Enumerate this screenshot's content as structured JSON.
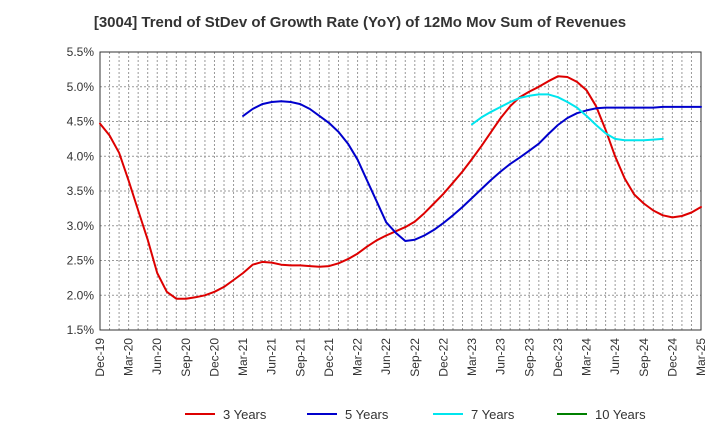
{
  "chart_data": {
    "type": "line",
    "title": "[3004]  Trend of StDev of Growth Rate (YoY) of 12Mo Mov Sum of Revenues",
    "xlabel": "",
    "ylabel": "",
    "ylim": [
      1.5,
      5.5
    ],
    "yticks": [
      "1.5%",
      "2.0%",
      "2.5%",
      "3.0%",
      "3.5%",
      "4.0%",
      "4.5%",
      "5.0%",
      "5.5%"
    ],
    "ytick_values": [
      1.5,
      2.0,
      2.5,
      3.0,
      3.5,
      4.0,
      4.5,
      5.0,
      5.5
    ],
    "xticks": [
      "Dec-19",
      "Mar-20",
      "Jun-20",
      "Sep-20",
      "Dec-20",
      "Mar-21",
      "Jun-21",
      "Sep-21",
      "Dec-21",
      "Mar-22",
      "Jun-22",
      "Sep-22",
      "Dec-22",
      "Mar-23",
      "Jun-23",
      "Sep-23",
      "Dec-23",
      "Mar-24",
      "Jun-24",
      "Sep-24",
      "Dec-24",
      "Mar-25"
    ],
    "x_range_months": [
      0,
      63
    ],
    "grid": true,
    "legend_position": "bottom",
    "series": [
      {
        "name": "3 Years",
        "color": "#dd0000",
        "start_month": 0,
        "values": [
          4.47,
          4.3,
          4.05,
          3.65,
          3.22,
          2.8,
          2.32,
          2.05,
          1.95,
          1.95,
          1.97,
          2.0,
          2.05,
          2.12,
          2.22,
          2.32,
          2.44,
          2.48,
          2.47,
          2.44,
          2.43,
          2.43,
          2.42,
          2.41,
          2.42,
          2.46,
          2.52,
          2.6,
          2.7,
          2.79,
          2.86,
          2.92,
          2.98,
          3.06,
          3.18,
          3.32,
          3.46,
          3.62,
          3.78,
          3.96,
          4.15,
          4.35,
          4.55,
          4.72,
          4.85,
          4.93,
          5.0,
          5.08,
          5.15,
          5.14,
          5.07,
          4.95,
          4.72,
          4.38,
          4.0,
          3.68,
          3.45,
          3.32,
          3.22,
          3.15,
          3.12,
          3.14,
          3.19,
          3.27
        ]
      },
      {
        "name": "5 Years",
        "color": "#0000cc",
        "start_month": 15,
        "values": [
          4.58,
          4.68,
          4.75,
          4.78,
          4.79,
          4.78,
          4.75,
          4.68,
          4.58,
          4.48,
          4.35,
          4.18,
          3.95,
          3.65,
          3.35,
          3.05,
          2.9,
          2.78,
          2.8,
          2.86,
          2.94,
          3.04,
          3.15,
          3.27,
          3.4,
          3.53,
          3.66,
          3.78,
          3.89,
          3.98,
          4.08,
          4.18,
          4.32,
          4.45,
          4.55,
          4.62,
          4.66,
          4.69,
          4.7,
          4.7,
          4.7,
          4.7,
          4.7,
          4.7,
          4.71,
          4.71,
          4.71,
          4.71,
          4.71
        ]
      },
      {
        "name": "7 Years",
        "color": "#00e5ee",
        "start_month": 39,
        "values": [
          4.46,
          4.56,
          4.64,
          4.71,
          4.78,
          4.84,
          4.87,
          4.89,
          4.89,
          4.85,
          4.78,
          4.7,
          4.58,
          4.45,
          4.33,
          4.25,
          4.23,
          4.23,
          4.23,
          4.24,
          4.25
        ]
      },
      {
        "name": "10 Years",
        "color": "#008000",
        "start_month": 0,
        "values": []
      }
    ]
  }
}
